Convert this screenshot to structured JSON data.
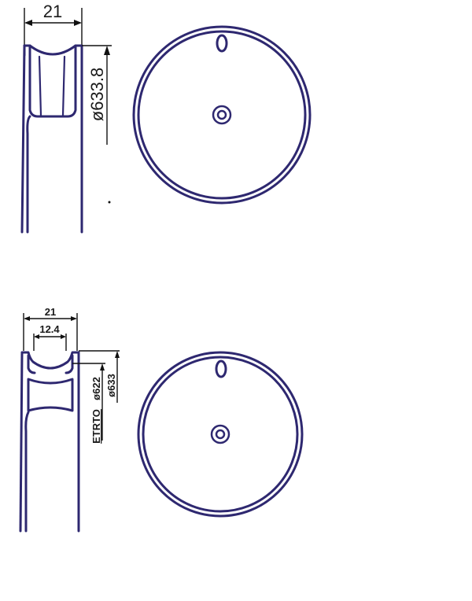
{
  "colors": {
    "line": "#2e2870",
    "dimension": "#111111",
    "background": "#ffffff"
  },
  "top_view": {
    "width_label": "21",
    "diameter_label": "ø633.8"
  },
  "bottom_view": {
    "outer_width_label": "21",
    "inner_width_label": "12.4",
    "diameter_622_label": "ø622",
    "diameter_633_label": "ø633",
    "rim_label": "ETRTO"
  }
}
